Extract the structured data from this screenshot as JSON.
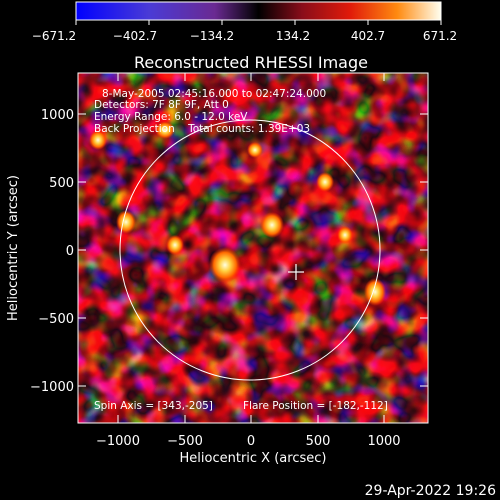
{
  "colorbar": {
    "ticks": [
      "−671.2",
      "−402.7",
      "−134.2",
      "134.2",
      "402.7",
      "671.2"
    ]
  },
  "title": "Reconstructed RHESSI Image",
  "info": {
    "line1": "8-May-2005 02:45:16.000 to 02:47:24.000",
    "line2": "Detectors: 7F 8F 9F, Att 0",
    "line3": "Energy Range: 6.0 - 12.0 keV",
    "line4": "Back Projection    Total counts: 1.39E+03",
    "spin_axis": "Spin Axis = [343,-205]",
    "flare_position": "Flare Position = [-182,-112]"
  },
  "axes": {
    "xlabel": "Heliocentric X (arcsec)",
    "ylabel": "Heliocentric Y (arcsec)",
    "xticks": [
      "−1000",
      "−500",
      "0",
      "500",
      "1000"
    ],
    "yticks": [
      "1000",
      "500",
      "0",
      "−500",
      "−1000"
    ]
  },
  "timestamp": "29-Apr-2022 19:26",
  "colors": {
    "background": "#000000",
    "text": "#ffffff",
    "colormap": [
      "#0000ff",
      "#4a3bd6",
      "#7a2ea8",
      "#3a0f4a",
      "#8a0d1a",
      "#e01a0a",
      "#ff7a00",
      "#ffe060",
      "#ffffff"
    ]
  }
}
